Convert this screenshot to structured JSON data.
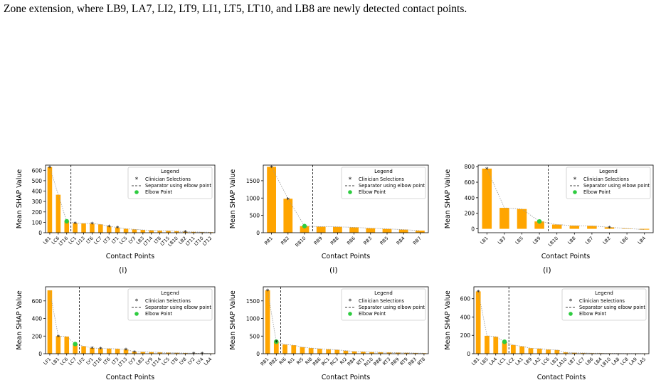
{
  "caption": "Zone extension, where LB9, LA7, LI2, LT9, LI1, LT5, LT10, and LB8 are newly detected contact points.",
  "colors": {
    "bar": "#ffa500",
    "elbow": "#2ecc40",
    "trend": "#999999",
    "separator": "#000000"
  },
  "legend": {
    "title": "Legend",
    "items": [
      "Clinician Selections",
      "Separator using elbow point",
      "Elbow Point"
    ]
  },
  "chart_data": [
    {
      "type": "bar",
      "xlabel": "Contact Points",
      "ylabel": "Mean SHAP Value",
      "sublabel": "(i)",
      "ylim": [
        0,
        650
      ],
      "yticks": [
        0,
        100,
        200,
        300,
        400,
        500,
        600
      ],
      "categories": [
        "LB1",
        "LC6",
        "LT16",
        "LC1",
        "LI13",
        "LT6",
        "LC7",
        "LT3",
        "LT1",
        "LC5",
        "LY3",
        "LB3",
        "LT14",
        "LT8",
        "LT15",
        "LB10",
        "LB2",
        "LT11",
        "LT10",
        "LT12"
      ],
      "values": [
        630,
        365,
        110,
        92,
        90,
        88,
        80,
        62,
        50,
        38,
        32,
        27,
        23,
        20,
        18,
        15,
        10,
        8,
        6,
        5
      ],
      "clinician": [
        0,
        3,
        5,
        7,
        8,
        16
      ],
      "elbow": 2,
      "separator_after": 2
    },
    {
      "type": "bar",
      "xlabel": "Contact Points",
      "ylabel": "Mean SHAP Value",
      "sublabel": "(i)",
      "ylim": [
        0,
        1950
      ],
      "yticks": [
        0,
        500,
        1000,
        1500
      ],
      "categories": [
        "RB1",
        "RB2",
        "RB10",
        "RB9",
        "RB8",
        "RB6",
        "RB3",
        "RB5",
        "RB4",
        "RB7"
      ],
      "values": [
        1900,
        980,
        190,
        175,
        170,
        155,
        130,
        110,
        90,
        60
      ],
      "clinician": [
        0,
        1
      ],
      "elbow": 2,
      "separator_after": 2
    },
    {
      "type": "bar",
      "xlabel": "Contact Points",
      "ylabel": "Mean SHAP Value",
      "sublabel": "(i)",
      "ylim": [
        -50,
        820
      ],
      "yticks": [
        0,
        200,
        400,
        600,
        800
      ],
      "categories": [
        "LB1",
        "LB3",
        "LB5",
        "LB9",
        "LB10",
        "LB8",
        "LB7",
        "LB2",
        "LB6",
        "LB4"
      ],
      "values": [
        775,
        270,
        255,
        95,
        55,
        40,
        38,
        20,
        5,
        -10
      ],
      "clinician": [
        0,
        7
      ],
      "elbow": 3,
      "separator_after": 3
    },
    {
      "type": "bar",
      "xlabel": "Contact Points",
      "ylabel": "Mean SHAP Value",
      "sublabel": "",
      "ylim": [
        0,
        760
      ],
      "yticks": [
        0,
        200,
        400,
        600
      ],
      "categories": [
        "LF1",
        "LB1",
        "LC6",
        "LC7",
        "LF2",
        "LY1",
        "LT16",
        "LT6",
        "LT3",
        "LT13",
        "LY3",
        "LB3",
        "LY9",
        "LT14",
        "LC5",
        "LT8",
        "LY8",
        "LY2",
        "LY4",
        "LA4"
      ],
      "values": [
        720,
        200,
        195,
        110,
        85,
        65,
        60,
        58,
        55,
        48,
        22,
        20,
        18,
        15,
        12,
        10,
        8,
        5,
        4,
        3
      ],
      "clinician": [
        1,
        5,
        6,
        9,
        10,
        17,
        18
      ],
      "elbow": 3,
      "separator_after": 3
    },
    {
      "type": "bar",
      "xlabel": "Contact Points",
      "ylabel": "Mean SHAP Value",
      "sublabel": "",
      "ylim": [
        0,
        1900
      ],
      "yticks": [
        0,
        500,
        1000,
        1500
      ],
      "categories": [
        "RB1",
        "RB2",
        "RI6",
        "RI1",
        "RI5",
        "RI8",
        "RB6",
        "RC1",
        "RC3",
        "RI2",
        "RB4",
        "RT1",
        "RI10",
        "RB8",
        "RT3",
        "RB9",
        "RT9",
        "RB3",
        "RT8"
      ],
      "values": [
        1800,
        340,
        260,
        240,
        185,
        160,
        140,
        125,
        110,
        85,
        65,
        55,
        45,
        40,
        35,
        30,
        25,
        20,
        15
      ],
      "clinician": [
        0,
        1
      ],
      "elbow": 1,
      "separator_after": 1
    },
    {
      "type": "bar",
      "xlabel": "Contact Points",
      "ylabel": "Mean SHAP Value",
      "sublabel": "",
      "ylim": [
        0,
        730
      ],
      "yticks": [
        0,
        200,
        400,
        600
      ],
      "categories": [
        "LB1",
        "LB5",
        "LA4",
        "LC1",
        "LC2",
        "LA1",
        "LB9",
        "LA2",
        "LC6",
        "LB3",
        "LA10",
        "LB7",
        "LC7",
        "LB6",
        "LB4",
        "LB10",
        "LA8",
        "LC8",
        "LA9",
        "LA5"
      ],
      "values": [
        680,
        195,
        185,
        130,
        95,
        80,
        60,
        55,
        45,
        40,
        15,
        10,
        8,
        6,
        5,
        4,
        3,
        2,
        2,
        1
      ],
      "clinician": [
        0
      ],
      "elbow": 3,
      "separator_after": 3
    }
  ]
}
